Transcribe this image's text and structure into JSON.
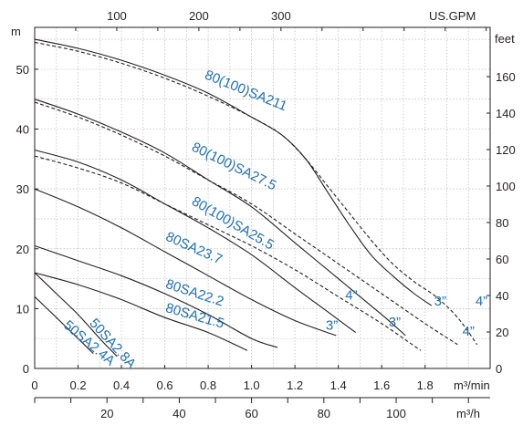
{
  "chart_data": {
    "type": "line",
    "grid": true,
    "axes": {
      "left": {
        "unit": "m",
        "range": [
          0,
          57
        ],
        "ticks": [
          "0",
          "10",
          "20",
          "30",
          "40",
          "50"
        ],
        "tick_values": [
          0,
          10,
          20,
          30,
          40,
          50
        ]
      },
      "right": {
        "unit": "feet",
        "range": [
          0,
          187.0
        ],
        "ticks": [
          "0",
          "20",
          "40",
          "60",
          "80",
          "100",
          "120",
          "140",
          "160"
        ],
        "tick_values": [
          0,
          20,
          40,
          60,
          80,
          100,
          120,
          140,
          160
        ]
      },
      "bottom": {
        "unit": "m³/min",
        "range": [
          0,
          2.1
        ],
        "ticks": [
          "0",
          "0.2",
          "0.4",
          "0.6",
          "0.8",
          "1.0",
          "1.2",
          "1.4",
          "1.6",
          "1.8"
        ],
        "tick_values": [
          0,
          0.2,
          0.4,
          0.6,
          0.8,
          1.0,
          1.2,
          1.4,
          1.6,
          1.8
        ]
      },
      "bottom2": {
        "unit": "m³/h",
        "ticks": [
          "20",
          "40",
          "60",
          "80",
          "100"
        ],
        "tick_values": [
          20,
          40,
          60,
          80,
          100
        ]
      },
      "top": {
        "unit": "US.GPM",
        "ticks": [
          "100",
          "200",
          "300"
        ],
        "tick_values": [
          100,
          200,
          300
        ]
      }
    },
    "series": [
      {
        "name": "80(100)SA211",
        "dashed": false,
        "x": [
          0,
          0.2,
          0.4,
          0.6,
          0.8,
          1.0,
          1.14,
          1.25,
          1.35,
          1.45,
          1.55,
          1.65,
          1.75,
          1.83
        ],
        "y": [
          55,
          53.5,
          51.5,
          49,
          46,
          42,
          39,
          35,
          29.5,
          24,
          19,
          15.5,
          12.5,
          10.5
        ]
      },
      {
        "name": "80(100)SA211",
        "dashed": true,
        "x": [
          0,
          0.2,
          0.4,
          0.6,
          0.8,
          1.0,
          1.14,
          1.25,
          1.35,
          1.45,
          1.55,
          1.65,
          1.75,
          1.85,
          1.95,
          2.04
        ],
        "y": [
          54.5,
          53,
          51,
          48.5,
          45.5,
          42,
          39,
          35,
          30.5,
          26,
          21.5,
          17.5,
          14.5,
          12,
          8.5,
          4
        ]
      },
      {
        "name": "80(100)SA27.5",
        "dashed": false,
        "x": [
          0,
          0.2,
          0.4,
          0.6,
          0.8,
          1.0,
          1.2,
          1.4,
          1.6,
          1.71
        ],
        "y": [
          45,
          42.5,
          39.5,
          36,
          31.5,
          27,
          21,
          15,
          9,
          5.5
        ]
      },
      {
        "name": "80(100)SA27.5",
        "dashed": true,
        "x": [
          0,
          0.2,
          0.4,
          0.6,
          0.8,
          1.0,
          1.2,
          1.4,
          1.6,
          1.8,
          1.95
        ],
        "y": [
          44.5,
          42,
          39,
          35.5,
          31.5,
          27.5,
          22.5,
          17.5,
          12.5,
          7.5,
          4
        ]
      },
      {
        "name": "80(100)SA25.5",
        "dashed": false,
        "x": [
          0,
          0.2,
          0.4,
          0.6,
          0.8,
          1.0,
          1.2,
          1.35,
          1.48
        ],
        "y": [
          36.5,
          34.5,
          31.5,
          27.5,
          23.5,
          19,
          13.5,
          9.5,
          6
        ]
      },
      {
        "name": "80(100)SA25.5",
        "dashed": true,
        "x": [
          0,
          0.2,
          0.4,
          0.6,
          0.8,
          1.0,
          1.2,
          1.4,
          1.6,
          1.78
        ],
        "y": [
          35.5,
          33.5,
          31,
          27.5,
          24,
          20.5,
          16.5,
          12,
          7.5,
          3
        ]
      },
      {
        "name": "80SA23.7",
        "dashed": false,
        "x": [
          0,
          0.2,
          0.4,
          0.6,
          0.8,
          1.0,
          1.2,
          1.39
        ],
        "y": [
          30,
          27,
          23.5,
          19.5,
          15.5,
          11.5,
          8,
          5.5
        ]
      },
      {
        "name": "80SA22.2",
        "dashed": false,
        "x": [
          0,
          0.2,
          0.4,
          0.6,
          0.8,
          1.0,
          1.12
        ],
        "y": [
          20.5,
          18,
          15.5,
          12.5,
          9,
          5,
          3.5
        ]
      },
      {
        "name": "80SA21.5",
        "dashed": false,
        "x": [
          0,
          0.2,
          0.4,
          0.6,
          0.8,
          0.98
        ],
        "y": [
          16,
          14,
          11.5,
          8.5,
          6,
          3
        ]
      },
      {
        "name": "50SA2.8A",
        "dashed": false,
        "x": [
          0,
          0.1,
          0.2,
          0.3,
          0.38
        ],
        "y": [
          16,
          12.5,
          9,
          5,
          2
        ]
      },
      {
        "name": "50SA2.4A",
        "dashed": false,
        "x": [
          0,
          0.1,
          0.2,
          0.27
        ],
        "y": [
          12,
          8.5,
          5,
          2.5
        ]
      }
    ],
    "series_labels": [
      {
        "text": "80(100)SA211",
        "x": 0.78,
        "y": 48.5,
        "angle": 22
      },
      {
        "text": "80(100)SA27.5",
        "x": 0.72,
        "y": 36.5,
        "angle": 26
      },
      {
        "text": "80(100)SA25.5",
        "x": 0.72,
        "y": 27.5,
        "angle": 30
      },
      {
        "text": "80SA23.7",
        "x": 0.6,
        "y": 21.5,
        "angle": 24
      },
      {
        "text": "80SA22.2",
        "x": 0.6,
        "y": 13.5,
        "angle": 18
      },
      {
        "text": "80SA21.5",
        "x": 0.6,
        "y": 9.5,
        "angle": 16
      },
      {
        "text": "50SA2.8A",
        "x": 0.25,
        "y": 7.5,
        "angle": 48
      },
      {
        "text": "50SA2.4A",
        "x": 0.13,
        "y": 7.0,
        "angle": 40
      }
    ],
    "annotations": [
      {
        "text": "4”",
        "x": 1.46,
        "y": 11.5
      },
      {
        "text": "3”",
        "x": 1.37,
        "y": 6.5
      },
      {
        "text": "3”",
        "x": 1.66,
        "y": 7.0
      },
      {
        "text": "3”",
        "x": 1.87,
        "y": 10.5
      },
      {
        "text": "4”",
        "x": 2.06,
        "y": 10.5
      },
      {
        "text": "4”",
        "x": 2.0,
        "y": 5.5
      }
    ]
  }
}
